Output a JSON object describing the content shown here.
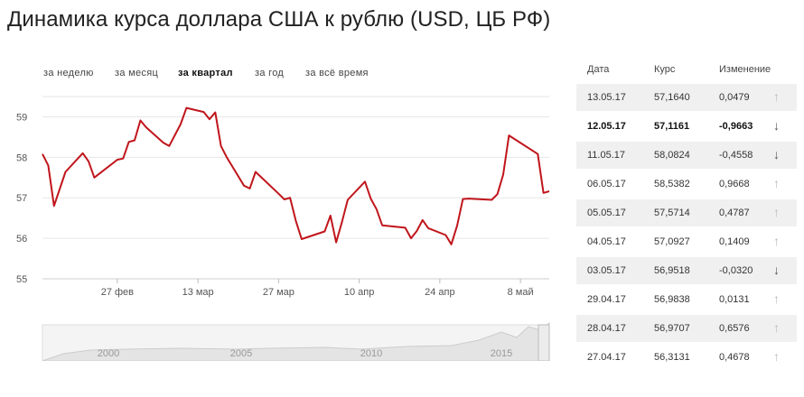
{
  "title": "Динамика курса доллара США к рублю (USD, ЦБ РФ)",
  "period_tabs": [
    {
      "label": "за неделю",
      "active": false
    },
    {
      "label": "за месяц",
      "active": false
    },
    {
      "label": "за квартал",
      "active": true
    },
    {
      "label": "за год",
      "active": false
    },
    {
      "label": "за всё время",
      "active": false
    }
  ],
  "table": {
    "headers": {
      "date": "Дата",
      "rate": "Курс",
      "change": "Изменение"
    },
    "rows": [
      {
        "date": "13.05.17",
        "rate": "57,1640",
        "change": "0,0479",
        "dir": "up",
        "arrow": "↑",
        "bold": false
      },
      {
        "date": "12.05.17",
        "rate": "57,1161",
        "change": "-0,9663",
        "dir": "down",
        "arrow": "↓",
        "bold": true
      },
      {
        "date": "11.05.17",
        "rate": "58,0824",
        "change": "-0,4558",
        "dir": "down",
        "arrow": "↓",
        "bold": false
      },
      {
        "date": "06.05.17",
        "rate": "58,5382",
        "change": "0,9668",
        "dir": "up",
        "arrow": "↑",
        "bold": false
      },
      {
        "date": "05.05.17",
        "rate": "57,5714",
        "change": "0,4787",
        "dir": "up",
        "arrow": "↑",
        "bold": false
      },
      {
        "date": "04.05.17",
        "rate": "57,0927",
        "change": "0,1409",
        "dir": "up",
        "arrow": "↑",
        "bold": false
      },
      {
        "date": "03.05.17",
        "rate": "56,9518",
        "change": "-0,0320",
        "dir": "down",
        "arrow": "↓",
        "bold": false
      },
      {
        "date": "29.04.17",
        "rate": "56,9838",
        "change": "0,0131",
        "dir": "up",
        "arrow": "↑",
        "bold": false
      },
      {
        "date": "28.04.17",
        "rate": "56,9707",
        "change": "0,6576",
        "dir": "up",
        "arrow": "↑",
        "bold": false
      },
      {
        "date": "27.04.17",
        "rate": "56,3131",
        "change": "0,4678",
        "dir": "up",
        "arrow": "↑",
        "bold": false
      }
    ]
  },
  "colors": {
    "line": "#c0151b",
    "grid": "#e6e6e6",
    "table_shade": "#f0f0f0"
  },
  "chart_data": {
    "type": "line",
    "title": "",
    "xlabel": "",
    "ylabel": "",
    "x_range": [
      "2017-02-14",
      "2017-05-13"
    ],
    "ylim": [
      55,
      59.5
    ],
    "yticks": [
      55,
      56,
      57,
      58,
      59
    ],
    "grid": true,
    "xticks": [
      {
        "date": "2017-02-27",
        "label": "27 фев"
      },
      {
        "date": "2017-03-13",
        "label": "13 мар"
      },
      {
        "date": "2017-03-27",
        "label": "27 мар"
      },
      {
        "date": "2017-04-10",
        "label": "10 апр"
      },
      {
        "date": "2017-04-24",
        "label": "24 апр"
      },
      {
        "date": "2017-05-08",
        "label": "8 май"
      }
    ],
    "series": [
      {
        "color": "#c0151b",
        "points": [
          [
            "2017-02-14",
            58.08
          ],
          [
            "2017-02-15",
            57.8
          ],
          [
            "2017-02-16",
            56.8
          ],
          [
            "2017-02-18",
            57.64
          ],
          [
            "2017-02-21",
            58.1
          ],
          [
            "2017-02-22",
            57.9
          ],
          [
            "2017-02-23",
            57.5
          ],
          [
            "2017-02-27",
            57.94
          ],
          [
            "2017-02-28",
            57.97
          ],
          [
            "2017-03-01",
            58.38
          ],
          [
            "2017-03-02",
            58.42
          ],
          [
            "2017-03-03",
            58.91
          ],
          [
            "2017-03-04",
            58.74
          ],
          [
            "2017-03-07",
            58.36
          ],
          [
            "2017-03-08",
            58.28
          ],
          [
            "2017-03-10",
            58.82
          ],
          [
            "2017-03-11",
            59.22
          ],
          [
            "2017-03-14",
            59.12
          ],
          [
            "2017-03-15",
            58.94
          ],
          [
            "2017-03-16",
            59.11
          ],
          [
            "2017-03-17",
            58.28
          ],
          [
            "2017-03-18",
            58.0
          ],
          [
            "2017-03-21",
            57.3
          ],
          [
            "2017-03-22",
            57.23
          ],
          [
            "2017-03-23",
            57.64
          ],
          [
            "2017-03-27",
            57.1
          ],
          [
            "2017-03-28",
            56.96
          ],
          [
            "2017-03-29",
            57.0
          ],
          [
            "2017-03-30",
            56.43
          ],
          [
            "2017-03-31",
            55.98
          ],
          [
            "2017-04-04",
            56.17
          ],
          [
            "2017-04-05",
            56.56
          ],
          [
            "2017-04-06",
            55.9
          ],
          [
            "2017-04-07",
            56.4
          ],
          [
            "2017-04-08",
            56.95
          ],
          [
            "2017-04-11",
            57.4
          ],
          [
            "2017-04-12",
            56.98
          ],
          [
            "2017-04-13",
            56.72
          ],
          [
            "2017-04-14",
            56.32
          ],
          [
            "2017-04-18",
            56.26
          ],
          [
            "2017-04-19",
            56.0
          ],
          [
            "2017-04-20",
            56.18
          ],
          [
            "2017-04-21",
            56.45
          ],
          [
            "2017-04-22",
            56.25
          ],
          [
            "2017-04-25",
            56.08
          ],
          [
            "2017-04-26",
            55.85
          ],
          [
            "2017-04-27",
            56.31
          ],
          [
            "2017-04-28",
            56.97
          ],
          [
            "2017-04-29",
            56.98
          ],
          [
            "2017-05-03",
            56.95
          ],
          [
            "2017-05-04",
            57.09
          ],
          [
            "2017-05-05",
            57.57
          ],
          [
            "2017-05-06",
            58.54
          ],
          [
            "2017-05-11",
            58.08
          ],
          [
            "2017-05-12",
            57.12
          ],
          [
            "2017-05-13",
            57.16
          ]
        ]
      }
    ],
    "navigator": {
      "labels": [
        "2000",
        "2005",
        "2010",
        "2015"
      ]
    }
  }
}
